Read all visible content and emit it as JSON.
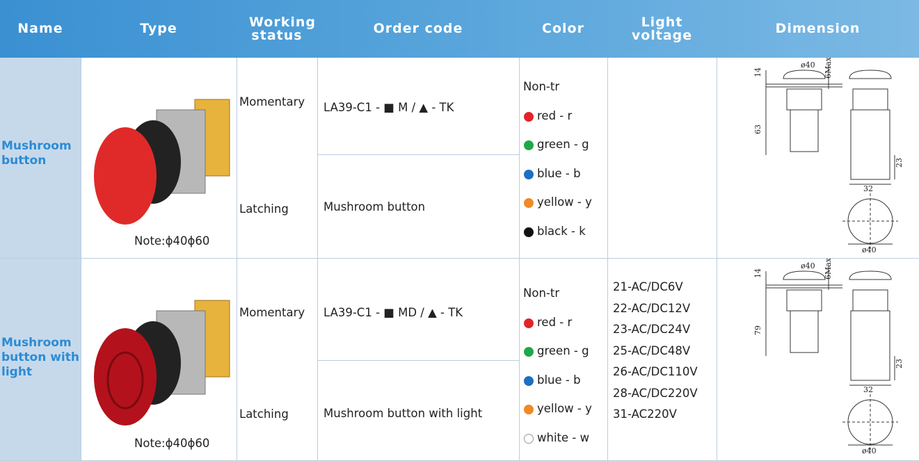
{
  "table": {
    "headers": [
      "Name",
      "Type",
      "Working status",
      "Order code",
      "Color",
      "Light voltage",
      "Dimension"
    ],
    "rows": [
      {
        "name": "Mushroom button",
        "note": "Note:ϕ40ϕ60",
        "statuses": [
          "Momentary",
          "Latching"
        ],
        "order_codes": [
          "LA39-C1 - ■ M / ▲ - TK",
          "Mushroom button"
        ],
        "color_heading": "Non-tr",
        "colors": [
          {
            "label": "red  - r",
            "dot": "#e3232b"
          },
          {
            "label": "green  - g",
            "dot": "#1fa84a"
          },
          {
            "label": "blue  - b",
            "dot": "#1f6fc0"
          },
          {
            "label": "yellow  - y",
            "dot": "#f08a24"
          },
          {
            "label": "black  - k",
            "dot": "#111111"
          }
        ],
        "voltages": [],
        "dimension_labels": [
          "ø40",
          "6Max",
          "14",
          "63",
          "23",
          "32",
          "ø40"
        ]
      },
      {
        "name": "Mushroom button with light",
        "note": "Note:ϕ40ϕ60",
        "statuses": [
          "Momentary",
          "Latching"
        ],
        "order_codes": [
          "LA39-C1 - ■ MD / ▲ - TK",
          "Mushroom button with light"
        ],
        "color_heading": "Non-tr",
        "colors": [
          {
            "label": "red  - r",
            "dot": "#e3232b"
          },
          {
            "label": "green  - g",
            "dot": "#1fa84a"
          },
          {
            "label": "blue  - b",
            "dot": "#1f6fc0"
          },
          {
            "label": "yellow  - y",
            "dot": "#f08a24"
          },
          {
            "label": "white  - w",
            "dot": "#ffffff"
          }
        ],
        "voltages": [
          "21-AC/DC6V",
          "22-AC/DC12V",
          "23-AC/DC24V",
          "25-AC/DC48V",
          "26-AC/DC110V",
          "28-AC/DC220V",
          "31-AC220V"
        ],
        "dimension_labels": [
          "ø40",
          "6Max",
          "14",
          "79",
          "23",
          "32",
          "ø40"
        ]
      }
    ]
  }
}
